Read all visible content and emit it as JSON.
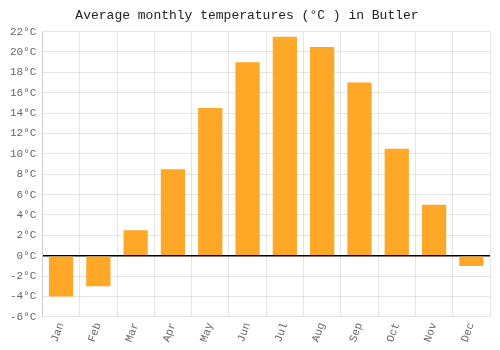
{
  "chart_data": {
    "type": "bar",
    "title": "Average monthly temperatures (°C ) in Butler",
    "categories": [
      "Jan",
      "Feb",
      "Mar",
      "Apr",
      "May",
      "Jun",
      "Jul",
      "Aug",
      "Sep",
      "Oct",
      "Nov",
      "Dec"
    ],
    "values": [
      -4.0,
      -3.0,
      2.5,
      8.5,
      14.5,
      19.0,
      21.5,
      20.5,
      17.0,
      10.5,
      5.0,
      -1.0
    ],
    "color": "#FFA726",
    "ylim": [
      -6,
      22
    ],
    "yticks": [
      {
        "value": -6,
        "label": "-6°C"
      },
      {
        "value": -4,
        "label": "-4°C"
      },
      {
        "value": -2,
        "label": "-2°C"
      },
      {
        "value": 0,
        "label": "0°C"
      },
      {
        "value": 2,
        "label": "2°C"
      },
      {
        "value": 4,
        "label": "4°C"
      },
      {
        "value": 6,
        "label": "6°C"
      },
      {
        "value": 8,
        "label": "8°C"
      },
      {
        "value": 10,
        "label": "10°C"
      },
      {
        "value": 12,
        "label": "12°C"
      },
      {
        "value": 14,
        "label": "14°C"
      },
      {
        "value": 16,
        "label": "16°C"
      },
      {
        "value": 18,
        "label": "18°C"
      },
      {
        "value": 20,
        "label": "20°C"
      },
      {
        "value": 22,
        "label": "22°C"
      }
    ],
    "grid": true
  }
}
